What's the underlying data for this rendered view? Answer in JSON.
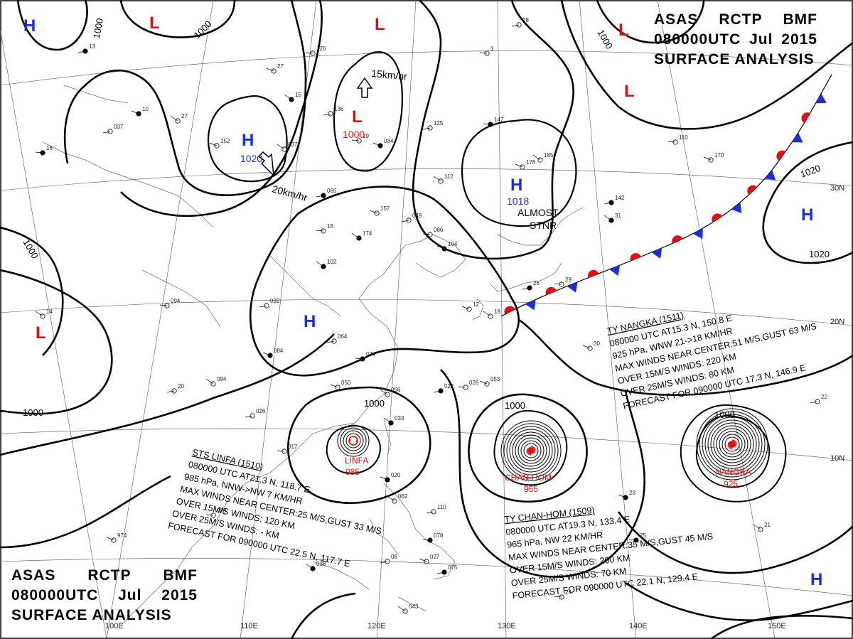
{
  "header": {
    "line1": [
      "ASAS",
      "RCTP",
      "BMF"
    ],
    "line2": [
      "080000UTC",
      "Jul",
      "2015"
    ],
    "line3": "SURFACE ANALYSIS"
  },
  "colors": {
    "high": "#1a2fd6",
    "low": "#e01010",
    "typhoon": "#e01010",
    "front_warm": "#e01010",
    "front_cold": "#1a2fd6",
    "isobar": "#000000"
  },
  "grid_labels": {
    "lon": [
      "100E",
      "110E",
      "120E",
      "130E",
      "140E",
      "150E"
    ],
    "lat": [
      "30N",
      "20N",
      "10N"
    ]
  },
  "isobar_labels": [
    "1000",
    "1000",
    "1000",
    "1000",
    "1020",
    "1020",
    "1000",
    "1000",
    "1000",
    "1000"
  ],
  "pressure_systems": [
    {
      "type": "H",
      "value": ""
    },
    {
      "type": "L",
      "value": ""
    },
    {
      "type": "L",
      "value": ""
    },
    {
      "type": "L",
      "value": ""
    },
    {
      "type": "L",
      "value": ""
    },
    {
      "type": "H",
      "value": "1020"
    },
    {
      "type": "L",
      "value": "1000"
    },
    {
      "type": "H",
      "value": "1018"
    },
    {
      "type": "H",
      "value": ""
    },
    {
      "type": "H",
      "value": ""
    },
    {
      "type": "L",
      "value": ""
    },
    {
      "type": "H",
      "value": ""
    }
  ],
  "motion": [
    {
      "label": "15km/hr"
    },
    {
      "label": "20km/hr"
    }
  ],
  "stationary_note": [
    "ALMOST",
    "STNR"
  ],
  "typhoons": [
    {
      "name": "LINFA",
      "pressure": "985"
    },
    {
      "name": "CHAN-HOM",
      "pressure": "965"
    },
    {
      "name": "NANGKA",
      "pressure": "925"
    }
  ],
  "advisories": [
    {
      "id": "nangka",
      "lines": [
        "TY  NANGKA  (1511)",
        "080000 UTC  AT15.3 N, 150.8 E",
        "925 hPa, WNW  21->18 KM/HR",
        "MAX WINDS NEAR CENTER:51 M/S,GUST 63 M/S",
        "OVER 15M/S WINDS: 220 KM",
        "OVER 25M/S WINDS: 80 KM",
        "FORECAST FOR 090000 UTC 17.3 N, 146.9 E"
      ]
    },
    {
      "id": "linfa",
      "lines": [
        "STS  LINFA  (1510)",
        "080000 UTC  AT21.3 N, 118.7 E",
        "985 hPa, NNW->NW  7 KM/HR",
        "MAX WINDS NEAR CENTER:25 M/S,GUST 33 M/S",
        "OVER 15M/S WINDS: 120 KM",
        "OVER 25M/S WINDS: - KM",
        "FORECAST FOR 090000 UTC 22.5 N, 117.7 E"
      ]
    },
    {
      "id": "chanhom",
      "lines": [
        "TY  CHAN-HOM  (1509)",
        "080000 UTC  AT19.3 N, 133.4 E",
        "965 hPa, NW  22 KM/HR",
        "MAX WINDS NEAR CENTER:35 M/S,GUST 45 M/S",
        "OVER 15M/S WINDS: 200 KM",
        "OVER 25M/S WINDS: 70 KM",
        "FORECAST FOR 090000 UTC 22.1 N, 129.4 E"
      ]
    }
  ],
  "station_values": [
    "13",
    "126",
    "27",
    "15",
    "136",
    "19",
    "034",
    "27",
    "037",
    "16",
    "152",
    "037",
    "065",
    "16",
    "157",
    "174",
    "049",
    "086",
    "104",
    "112",
    "125",
    "147",
    "176",
    "185",
    "142",
    "110",
    "170",
    "102",
    "092",
    "094",
    "084",
    "094",
    "064",
    "074",
    "050",
    "056",
    "022",
    "026",
    "053",
    "033",
    "026",
    "017",
    "020",
    "062",
    "110",
    "078",
    "027",
    "043",
    "075",
    "090",
    "974",
    "038",
    "08",
    "24",
    "23",
    "21",
    "22",
    "25",
    "12",
    "18",
    "26",
    "29",
    "30",
    "31",
    "28",
    "1",
    "10",
    "14",
    "20"
  ]
}
